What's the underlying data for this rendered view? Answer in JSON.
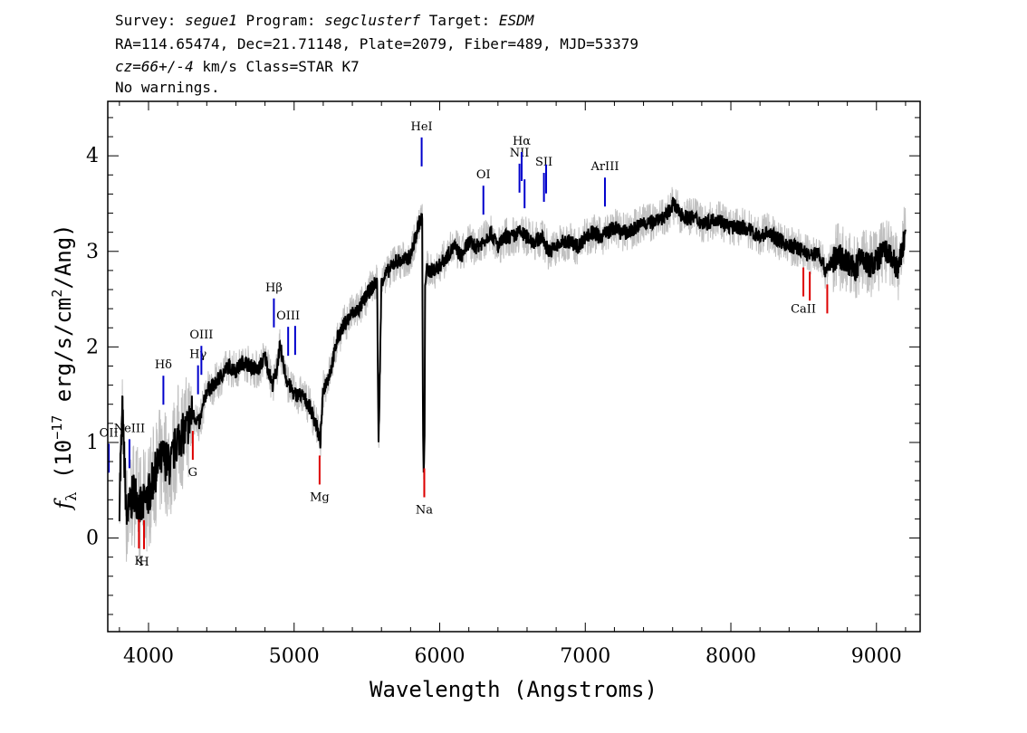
{
  "header": {
    "line1": [
      {
        "text": "Survey: ",
        "italic": false
      },
      {
        "text": "segue1",
        "italic": true
      },
      {
        "text": " Program: ",
        "italic": false
      },
      {
        "text": "segclusterf",
        "italic": true
      },
      {
        "text": " Target: ",
        "italic": false
      },
      {
        "text": "ESDM",
        "italic": true
      }
    ],
    "line2": "RA=114.65474, Dec=21.71148, Plate=2079, Fiber=489, MJD=53379",
    "line3": [
      {
        "text": "cz=66+/-4",
        "italic": true
      },
      {
        "text": " km/s Class=STAR K7",
        "italic": false
      }
    ],
    "line4": "No warnings."
  },
  "colors": {
    "spectrum": "#000000",
    "error": "#c0c0c0",
    "emission": "#0000cc",
    "absorption": "#dd0000"
  },
  "chart_data": {
    "type": "line",
    "title": "",
    "xlabel": "Wavelength (Angstroms)",
    "ylabel": "f_λ (10^-17 erg/s/cm^2/Ang)",
    "ylabel_parts": {
      "f": "f",
      "lambda": "λ",
      "open": " (10",
      "exp1": "−17",
      "mid": " erg/s/cm",
      "exp2": "2",
      "close": "/Ang)"
    },
    "xlim": [
      3720,
      9300
    ],
    "ylim": [
      -0.98,
      4.57
    ],
    "xticks": [
      4000,
      5000,
      6000,
      7000,
      8000,
      9000
    ],
    "yticks": [
      0,
      1,
      2,
      3,
      4
    ],
    "grid": false,
    "series": [
      {
        "style": "black",
        "x": [
          3800,
          3820,
          3850,
          3900,
          3950,
          4000,
          4050,
          4100,
          4150,
          4200,
          4250,
          4300,
          4350,
          4400,
          4450,
          4500,
          4550,
          4600,
          4650,
          4700,
          4750,
          4800,
          4850,
          4880,
          4900,
          4950,
          5000,
          5050,
          5100,
          5150,
          5180,
          5200,
          5250,
          5300,
          5350,
          5400,
          5450,
          5500,
          5550,
          5570,
          5580,
          5600,
          5650,
          5700,
          5750,
          5800,
          5850,
          5860,
          5880,
          5885,
          5890,
          5896,
          5900,
          5910,
          5950,
          6000,
          6050,
          6100,
          6150,
          6200,
          6250,
          6300,
          6350,
          6400,
          6450,
          6500,
          6550,
          6600,
          6650,
          6700,
          6750,
          6800,
          6850,
          6900,
          6950,
          7000,
          7050,
          7100,
          7150,
          7200,
          7250,
          7300,
          7350,
          7400,
          7450,
          7500,
          7550,
          7600,
          7650,
          7700,
          7750,
          7800,
          7850,
          7900,
          7950,
          8000,
          8050,
          8100,
          8150,
          8200,
          8250,
          8300,
          8350,
          8400,
          8450,
          8500,
          8550,
          8600,
          8650,
          8700,
          8750,
          8800,
          8850,
          8900,
          8920,
          8950,
          9000,
          9050,
          9100,
          9150,
          9200
        ],
        "y": [
          0.4,
          1.3,
          0.2,
          0.5,
          0.3,
          0.45,
          0.7,
          0.85,
          0.75,
          1.05,
          1.1,
          1.3,
          1.2,
          1.55,
          1.6,
          1.7,
          1.8,
          1.75,
          1.85,
          1.8,
          1.75,
          1.9,
          1.6,
          1.75,
          2.0,
          1.65,
          1.5,
          1.5,
          1.4,
          1.2,
          1.0,
          1.55,
          1.75,
          2.1,
          2.25,
          2.35,
          2.4,
          2.55,
          2.65,
          2.7,
          0.95,
          2.7,
          2.8,
          2.9,
          2.9,
          2.95,
          3.25,
          3.3,
          3.35,
          1.1,
          0.7,
          1.0,
          2.7,
          2.8,
          2.8,
          2.85,
          2.95,
          3.05,
          2.95,
          3.1,
          3.05,
          3.1,
          3.2,
          3.05,
          3.15,
          3.15,
          3.2,
          3.15,
          3.1,
          3.15,
          3.0,
          3.05,
          3.1,
          3.1,
          3.05,
          3.15,
          3.2,
          3.15,
          3.2,
          3.25,
          3.2,
          3.2,
          3.25,
          3.3,
          3.3,
          3.35,
          3.35,
          3.5,
          3.4,
          3.35,
          3.35,
          3.3,
          3.3,
          3.35,
          3.3,
          3.25,
          3.25,
          3.25,
          3.2,
          3.15,
          3.2,
          3.15,
          3.1,
          3.05,
          3.05,
          3.0,
          2.95,
          3.0,
          2.8,
          2.9,
          2.95,
          2.9,
          2.8,
          2.95,
          2.9,
          2.85,
          2.9,
          3.0,
          2.95,
          2.8,
          3.2
        ]
      }
    ],
    "lines": [
      {
        "label": "OII",
        "x": 3727,
        "kind": "emission",
        "label_pos": "upper"
      },
      {
        "label": "NeIII",
        "x": 3869,
        "kind": "emission",
        "label_pos": "upper"
      },
      {
        "label": "Hδ",
        "x": 4102,
        "kind": "emission",
        "label_pos": "upper"
      },
      {
        "label": "Hγ",
        "x": 4340,
        "kind": "emission",
        "label_pos": "upper"
      },
      {
        "label": "OIII",
        "x": 4363,
        "kind": "emission",
        "label_pos": "upper"
      },
      {
        "label": "Hβ",
        "x": 4861,
        "kind": "emission",
        "label_pos": "upper"
      },
      {
        "label": "OIII",
        "x": 4959,
        "kind": "emission",
        "label_pos": "upper"
      },
      {
        "label": "OIII",
        "x": 5007,
        "kind": "emission",
        "label_pos": "none"
      },
      {
        "label": "HeI",
        "x": 5876,
        "kind": "emission",
        "label_pos": "upper"
      },
      {
        "label": "OI",
        "x": 6300,
        "kind": "emission",
        "label_pos": "upper"
      },
      {
        "label": "NII",
        "x": 6548,
        "kind": "emission",
        "label_pos": "upper"
      },
      {
        "label": "Hα",
        "x": 6563,
        "kind": "emission",
        "label_pos": "upper"
      },
      {
        "label": "NII",
        "x": 6583,
        "kind": "emission",
        "label_pos": "none"
      },
      {
        "label": "SII",
        "x": 6716,
        "kind": "emission",
        "label_pos": "upper"
      },
      {
        "label": "SII",
        "x": 6731,
        "kind": "emission",
        "label_pos": "none"
      },
      {
        "label": "ArIII",
        "x": 7135,
        "kind": "emission",
        "label_pos": "upper"
      },
      {
        "label": "K",
        "x": 3934,
        "kind": "absorption",
        "label_pos": "lower"
      },
      {
        "label": "H",
        "x": 3969,
        "kind": "absorption",
        "label_pos": "lower"
      },
      {
        "label": "G",
        "x": 4304,
        "kind": "absorption",
        "label_pos": "lower"
      },
      {
        "label": "Mg",
        "x": 5175,
        "kind": "absorption",
        "label_pos": "lower"
      },
      {
        "label": "Na",
        "x": 5894,
        "kind": "absorption",
        "label_pos": "lower"
      },
      {
        "label": "D",
        "x": 5894,
        "kind": "absorption",
        "label_pos": "none"
      },
      {
        "label": "CaII",
        "x": 8498,
        "kind": "absorption",
        "label_pos": "lower"
      },
      {
        "label": "CaII",
        "x": 8542,
        "kind": "absorption",
        "label_pos": "none"
      },
      {
        "label": "CaII",
        "x": 8662,
        "kind": "absorption",
        "label_pos": "none"
      }
    ]
  }
}
